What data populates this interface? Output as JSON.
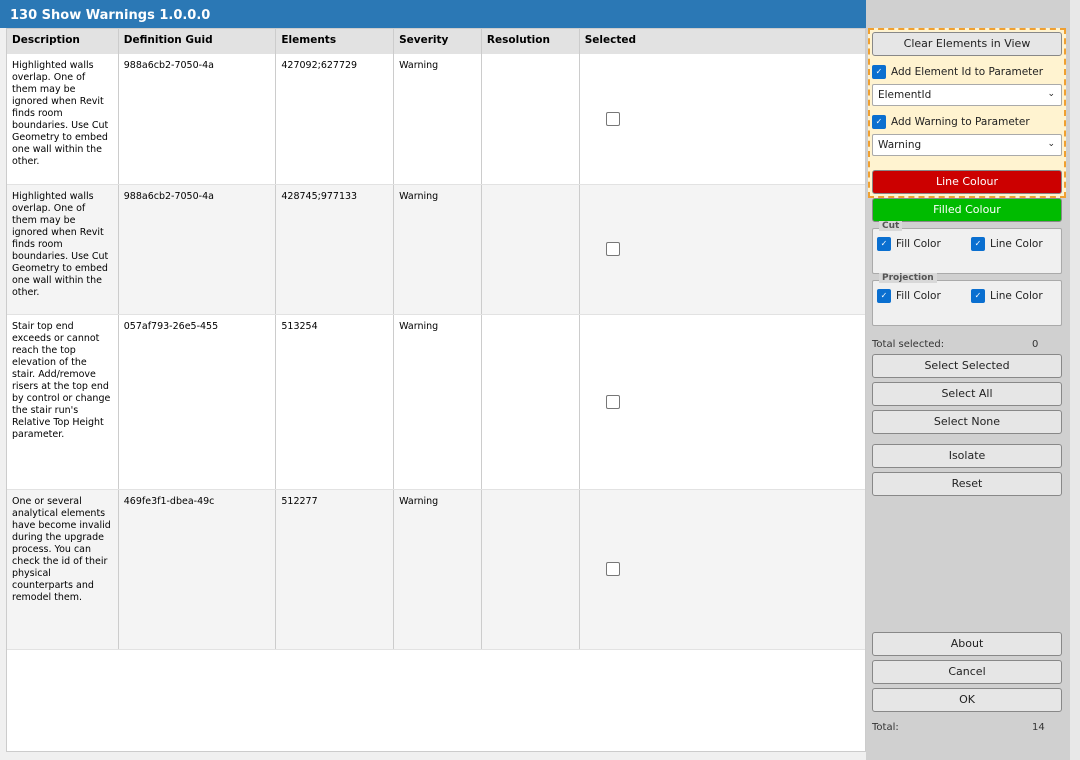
{
  "window": {
    "title": "130 Show Warnings  1.0.0.0"
  },
  "table": {
    "columns": [
      "Description",
      "Definition Guid",
      "Elements",
      "Severity",
      "Resolution",
      "Selected"
    ],
    "rows": [
      {
        "description": "Highlighted walls overlap. One of them may be ignored when Revit finds room boundaries. Use Cut Geometry to embed one wall within the other.",
        "guid": "988a6cb2-7050-4a",
        "elements": "427092;627729",
        "severity": "Warning",
        "resolution": "",
        "selected": false
      },
      {
        "description": "Highlighted walls overlap. One of them may be ignored when Revit finds room boundaries. Use Cut Geometry to embed one wall within the other.",
        "guid": "988a6cb2-7050-4a",
        "elements": "428745;977133",
        "severity": "Warning",
        "resolution": "",
        "selected": false
      },
      {
        "description": "Stair top end exceeds or cannot reach the top elevation of the stair. Add/remove risers at the top end by control or change the stair run's Relative Top Height parameter.",
        "guid": "057af793-26e5-455",
        "elements": "513254",
        "severity": "Warning",
        "resolution": "",
        "selected": false
      },
      {
        "description": "One or several analytical elements have become invalid during the upgrade process. You can check the id of their physical counterparts and remodel them.",
        "guid": "469fe3f1-dbea-49c",
        "elements": "512277",
        "severity": "Warning",
        "resolution": "",
        "selected": false
      }
    ]
  },
  "side": {
    "clear": "Clear Elements in View",
    "add_element_id": {
      "label": "Add Element Id to Parameter",
      "checked": true
    },
    "element_param": "ElementId",
    "add_warning": {
      "label": "Add Warning to Parameter",
      "checked": true
    },
    "warning_param": "Warning",
    "line_colour": "Line Colour",
    "line_colour_hex": "#cc0000",
    "filled_colour": "Filled Colour",
    "filled_colour_hex": "#00bb00",
    "cut": {
      "title": "Cut",
      "fill": "Fill Color",
      "line": "Line Color"
    },
    "projection": {
      "title": "Projection",
      "fill": "Fill Color",
      "line": "Line Color"
    },
    "total_selected_label": "Total selected:",
    "total_selected": "0",
    "select_selected": "Select Selected",
    "select_all": "Select All",
    "select_none": "Select None",
    "isolate": "Isolate",
    "reset": "Reset",
    "about": "About",
    "cancel": "Cancel",
    "ok": "OK",
    "total_label": "Total:",
    "total": "14"
  }
}
